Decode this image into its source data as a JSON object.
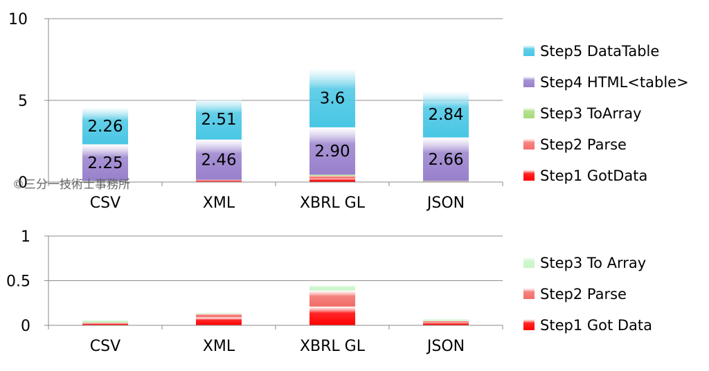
{
  "watermark": "©三分一技術士事務所",
  "chart_data": [
    {
      "type": "bar",
      "stacked": true,
      "categories": [
        "CSV",
        "XML",
        "XBRL GL",
        "JSON"
      ],
      "ylim": [
        0,
        10
      ],
      "yticks": [
        "10",
        "5",
        "0"
      ],
      "grid": true,
      "legend_position": "right",
      "series": [
        {
          "name": "Step1 GotData",
          "color": "#ff0000",
          "values": [
            0.02,
            0.09,
            0.21,
            0.03
          ]
        },
        {
          "name": "Step2 Parse",
          "color": "#f46f6a",
          "values": [
            0.01,
            0.04,
            0.18,
            0.02
          ]
        },
        {
          "name": "Step3 ToArray",
          "color": "#a6dc7a",
          "values": [
            0.03,
            0.01,
            0.06,
            0.02
          ]
        },
        {
          "name": "Step4 HTML<table>",
          "color": "#9880cc",
          "values": [
            2.25,
            2.46,
            2.9,
            2.66
          ]
        },
        {
          "name": "Step5 DataTable",
          "color": "#48c6e4",
          "values": [
            2.26,
            2.51,
            3.6,
            2.84
          ]
        }
      ],
      "data_labels": {
        "Step4 HTML<table>": [
          "2.25",
          "2.46",
          "2.90",
          "2.66"
        ],
        "Step5 DataTable": [
          "2.26",
          "2.51",
          "3.6",
          "2.84"
        ]
      },
      "legend_order": [
        "Step5 DataTable",
        "Step4 HTML<table>",
        "Step3 ToArray",
        "Step2 Parse",
        "Step1 GotData"
      ]
    },
    {
      "type": "bar",
      "stacked": true,
      "categories": [
        "CSV",
        "XML",
        "XBRL GL",
        "JSON"
      ],
      "ylim": [
        0,
        1
      ],
      "yticks": [
        "1",
        "0.5",
        "0"
      ],
      "grid": true,
      "legend_position": "right",
      "series": [
        {
          "name": "Step1 Got Data",
          "color": "#ff0000",
          "values": [
            0.02,
            0.09,
            0.21,
            0.03
          ]
        },
        {
          "name": "Step2 Parse",
          "color": "#f26c67",
          "values": [
            0.01,
            0.04,
            0.18,
            0.02
          ]
        },
        {
          "name": "Step3 To Array",
          "color": "#c8f5c8",
          "values": [
            0.03,
            0.01,
            0.06,
            0.02
          ]
        }
      ],
      "legend_order": [
        "Step3 To Array",
        "Step2 Parse",
        "Step1 Got Data"
      ]
    }
  ]
}
